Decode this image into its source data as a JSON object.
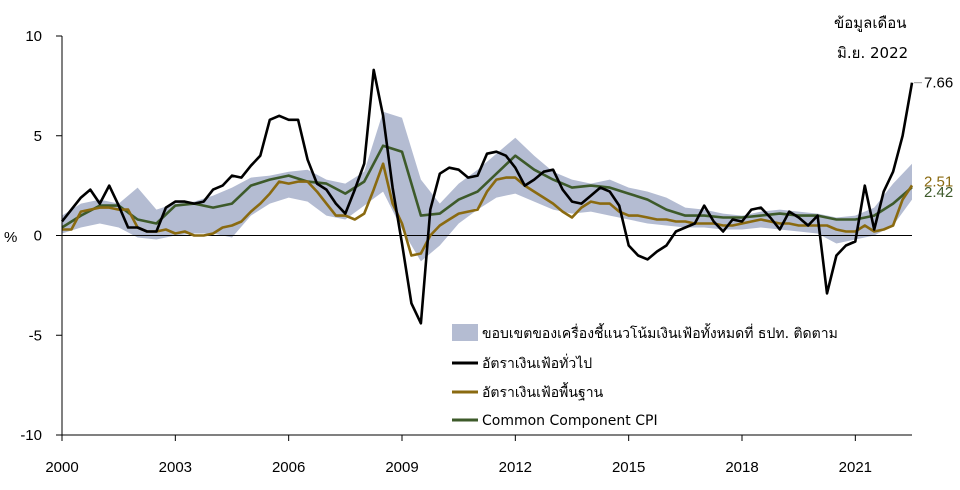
{
  "chart_data": {
    "type": "line",
    "title": "",
    "ylabel": "%",
    "xlabel": "",
    "ylim": [
      -10,
      10
    ],
    "yticks": [
      10,
      5,
      0,
      -5,
      -10
    ],
    "xlim": [
      2000.0,
      2022.5
    ],
    "xticks": [
      "2000",
      "2003",
      "2006",
      "2009",
      "2012",
      "2015",
      "2018",
      "2021"
    ],
    "xtick_values": [
      2000,
      2003,
      2006,
      2009,
      2012,
      2015,
      2018,
      2021
    ],
    "grid": false,
    "legend_position": "bottom-right",
    "note": [
      "ข้อมูลเดือน",
      "มิ.ย. 2022"
    ],
    "colors": {
      "band": "#b4bcd2",
      "headline": "#000000",
      "core": "#8a6a10",
      "common": "#3d5a2a",
      "axis": "#000000"
    },
    "band": {
      "name": "ขอบเขตของเครื่องชี้แนวโน้มเงินเฟ้อทั้งหมดที่ ธปท. ติดตาม",
      "x": [
        2000.0,
        2000.5,
        2001.0,
        2001.5,
        2002.0,
        2002.5,
        2003.0,
        2003.5,
        2004.0,
        2004.5,
        2005.0,
        2005.5,
        2006.0,
        2006.5,
        2007.0,
        2007.5,
        2008.0,
        2008.5,
        2009.0,
        2009.5,
        2010.0,
        2010.5,
        2011.0,
        2011.5,
        2012.0,
        2012.5,
        2013.0,
        2013.5,
        2014.0,
        2014.5,
        2015.0,
        2015.5,
        2016.0,
        2016.5,
        2017.0,
        2017.5,
        2018.0,
        2018.5,
        2019.0,
        2019.5,
        2020.0,
        2020.5,
        2021.0,
        2021.5,
        2022.0,
        2022.5
      ],
      "upper": [
        1.0,
        1.6,
        1.8,
        1.6,
        2.4,
        1.3,
        1.6,
        1.7,
        2.0,
        2.4,
        2.9,
        3.0,
        3.2,
        3.3,
        2.8,
        2.6,
        3.2,
        6.2,
        5.9,
        2.8,
        1.6,
        2.6,
        3.3,
        4.1,
        4.9,
        4.0,
        3.2,
        2.8,
        2.6,
        2.8,
        2.4,
        2.2,
        1.9,
        1.4,
        1.3,
        1.1,
        1.0,
        1.2,
        1.3,
        1.2,
        1.1,
        0.9,
        1.0,
        1.4,
        2.6,
        3.6
      ],
      "lower": [
        0.1,
        0.4,
        0.6,
        0.4,
        -0.1,
        -0.2,
        0.0,
        0.1,
        0.1,
        -0.1,
        1.0,
        1.6,
        1.9,
        1.7,
        1.0,
        0.8,
        1.5,
        2.2,
        0.3,
        -1.3,
        -0.5,
        0.6,
        1.3,
        1.9,
        2.1,
        1.7,
        1.3,
        1.1,
        1.2,
        1.0,
        0.8,
        0.6,
        0.5,
        0.4,
        0.4,
        0.3,
        0.3,
        0.4,
        0.3,
        0.2,
        0.1,
        -0.4,
        -0.2,
        0.0,
        0.5,
        1.8
      ]
    },
    "series": [
      {
        "name": "อัตราเงินเฟ้อทั่วไป",
        "key": "headline",
        "end_label": "7.66",
        "x": [
          2000.0,
          2000.25,
          2000.5,
          2000.75,
          2001.0,
          2001.25,
          2001.5,
          2001.75,
          2002.0,
          2002.25,
          2002.5,
          2002.75,
          2003.0,
          2003.25,
          2003.5,
          2003.75,
          2004.0,
          2004.25,
          2004.5,
          2004.75,
          2005.0,
          2005.25,
          2005.5,
          2005.75,
          2006.0,
          2006.25,
          2006.5,
          2006.75,
          2007.0,
          2007.25,
          2007.5,
          2007.75,
          2008.0,
          2008.25,
          2008.5,
          2008.75,
          2009.0,
          2009.25,
          2009.5,
          2009.75,
          2010.0,
          2010.25,
          2010.5,
          2010.75,
          2011.0,
          2011.25,
          2011.5,
          2011.75,
          2012.0,
          2012.25,
          2012.5,
          2012.75,
          2013.0,
          2013.25,
          2013.5,
          2013.75,
          2014.0,
          2014.25,
          2014.5,
          2014.75,
          2015.0,
          2015.25,
          2015.5,
          2015.75,
          2016.0,
          2016.25,
          2016.5,
          2016.75,
          2017.0,
          2017.25,
          2017.5,
          2017.75,
          2018.0,
          2018.25,
          2018.5,
          2018.75,
          2019.0,
          2019.25,
          2019.5,
          2019.75,
          2020.0,
          2020.25,
          2020.5,
          2020.75,
          2021.0,
          2021.25,
          2021.5,
          2021.75,
          2022.0,
          2022.25,
          2022.5
        ],
        "values": [
          0.7,
          1.3,
          1.9,
          2.3,
          1.6,
          2.5,
          1.5,
          0.4,
          0.4,
          0.2,
          0.2,
          1.4,
          1.7,
          1.7,
          1.6,
          1.7,
          2.3,
          2.5,
          3.0,
          2.9,
          3.5,
          4.0,
          5.8,
          6.0,
          5.8,
          5.8,
          3.8,
          2.6,
          2.3,
          1.6,
          1.1,
          2.3,
          3.6,
          8.3,
          6.0,
          2.4,
          -0.4,
          -3.4,
          -4.4,
          1.3,
          3.1,
          3.4,
          3.3,
          2.9,
          3.0,
          4.1,
          4.2,
          4.0,
          3.4,
          2.5,
          2.8,
          3.2,
          3.3,
          2.3,
          1.7,
          1.6,
          2.0,
          2.4,
          2.2,
          1.5,
          -0.5,
          -1.0,
          -1.2,
          -0.8,
          -0.5,
          0.2,
          0.4,
          0.6,
          1.5,
          0.7,
          0.2,
          0.8,
          0.7,
          1.3,
          1.4,
          0.9,
          0.3,
          1.2,
          0.9,
          0.5,
          1.0,
          -2.9,
          -1.0,
          -0.5,
          -0.3,
          2.5,
          0.3,
          2.2,
          3.2,
          5.0,
          7.66
        ]
      },
      {
        "name": "อัตราเงินเฟ้อพื้นฐาน",
        "key": "core",
        "end_label": "2.51",
        "x": [
          2000.0,
          2000.25,
          2000.5,
          2000.75,
          2001.0,
          2001.25,
          2001.5,
          2001.75,
          2002.0,
          2002.25,
          2002.5,
          2002.75,
          2003.0,
          2003.25,
          2003.5,
          2003.75,
          2004.0,
          2004.25,
          2004.5,
          2004.75,
          2005.0,
          2005.25,
          2005.5,
          2005.75,
          2006.0,
          2006.25,
          2006.5,
          2006.75,
          2007.0,
          2007.25,
          2007.5,
          2007.75,
          2008.0,
          2008.25,
          2008.5,
          2008.75,
          2009.0,
          2009.25,
          2009.5,
          2009.75,
          2010.0,
          2010.25,
          2010.5,
          2010.75,
          2011.0,
          2011.25,
          2011.5,
          2011.75,
          2012.0,
          2012.25,
          2012.5,
          2012.75,
          2013.0,
          2013.25,
          2013.5,
          2013.75,
          2014.0,
          2014.25,
          2014.5,
          2014.75,
          2015.0,
          2015.25,
          2015.5,
          2015.75,
          2016.0,
          2016.25,
          2016.5,
          2016.75,
          2017.0,
          2017.25,
          2017.5,
          2017.75,
          2018.0,
          2018.25,
          2018.5,
          2018.75,
          2019.0,
          2019.25,
          2019.5,
          2019.75,
          2020.0,
          2020.25,
          2020.5,
          2020.75,
          2021.0,
          2021.25,
          2021.5,
          2021.75,
          2022.0,
          2022.25,
          2022.5
        ],
        "values": [
          0.3,
          0.3,
          1.2,
          1.3,
          1.4,
          1.4,
          1.3,
          1.3,
          0.4,
          0.2,
          0.2,
          0.3,
          0.1,
          0.2,
          0.0,
          0.0,
          0.1,
          0.4,
          0.5,
          0.7,
          1.2,
          1.6,
          2.1,
          2.7,
          2.6,
          2.7,
          2.7,
          2.2,
          1.6,
          1.0,
          1.0,
          0.8,
          1.1,
          2.3,
          3.6,
          1.6,
          0.6,
          -1.0,
          -0.9,
          0.0,
          0.5,
          0.8,
          1.1,
          1.2,
          1.3,
          2.2,
          2.8,
          2.9,
          2.9,
          2.5,
          2.2,
          1.9,
          1.6,
          1.2,
          0.9,
          1.4,
          1.7,
          1.6,
          1.6,
          1.2,
          1.0,
          1.0,
          0.9,
          0.8,
          0.8,
          0.7,
          0.7,
          0.6,
          0.6,
          0.6,
          0.5,
          0.5,
          0.6,
          0.7,
          0.8,
          0.7,
          0.6,
          0.6,
          0.5,
          0.5,
          0.5,
          0.5,
          0.3,
          0.2,
          0.2,
          0.5,
          0.2,
          0.3,
          0.5,
          1.8,
          2.51
        ]
      },
      {
        "name": "Common Component CPI",
        "key": "common",
        "end_label": "2.42",
        "x": [
          2000.0,
          2000.5,
          2001.0,
          2001.5,
          2002.0,
          2002.5,
          2003.0,
          2003.5,
          2004.0,
          2004.5,
          2005.0,
          2005.5,
          2006.0,
          2006.5,
          2007.0,
          2007.5,
          2008.0,
          2008.5,
          2009.0,
          2009.5,
          2010.0,
          2010.5,
          2011.0,
          2011.5,
          2012.0,
          2012.5,
          2013.0,
          2013.5,
          2014.0,
          2014.5,
          2015.0,
          2015.5,
          2016.0,
          2016.5,
          2017.0,
          2017.5,
          2018.0,
          2018.5,
          2019.0,
          2019.5,
          2020.0,
          2020.5,
          2021.0,
          2021.5,
          2022.0,
          2022.5
        ],
        "values": [
          0.4,
          1.0,
          1.5,
          1.5,
          0.8,
          0.6,
          1.5,
          1.6,
          1.4,
          1.6,
          2.5,
          2.8,
          3.0,
          2.7,
          2.6,
          2.1,
          2.7,
          4.5,
          4.2,
          1.0,
          1.1,
          1.8,
          2.2,
          3.1,
          4.0,
          3.3,
          2.8,
          2.4,
          2.5,
          2.4,
          2.1,
          1.8,
          1.3,
          1.0,
          1.0,
          0.9,
          0.9,
          1.0,
          1.1,
          1.0,
          1.0,
          0.8,
          0.8,
          1.0,
          1.6,
          2.42
        ]
      }
    ]
  }
}
